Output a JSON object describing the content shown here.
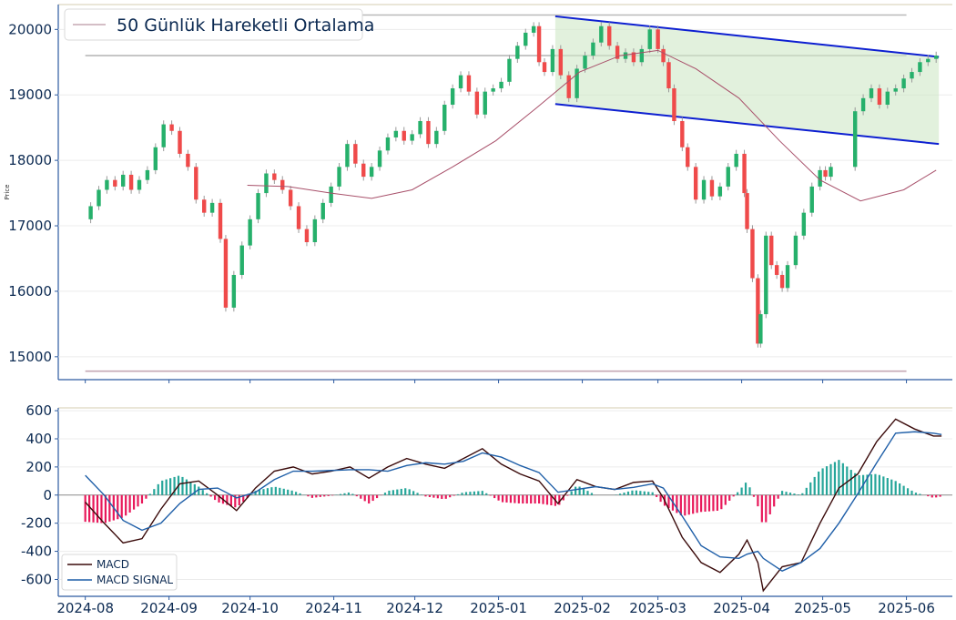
{
  "chart_data": [
    {
      "type": "candlestick",
      "ylabel": "Price",
      "ylim": [
        14650,
        20380
      ],
      "yticks": [
        15000,
        16000,
        17000,
        18000,
        19000,
        20000
      ],
      "xlim": [
        "2024-07-22",
        "2025-06-18"
      ],
      "xticks": [
        {
          "date": "2024-08-01",
          "label": "2024-08"
        },
        {
          "date": "2024-09-01",
          "label": "2024-09"
        },
        {
          "date": "2024-10-01",
          "label": "2024-10"
        },
        {
          "date": "2024-11-01",
          "label": "2024-11"
        },
        {
          "date": "2024-12-01",
          "label": "2024-12"
        },
        {
          "date": "2025-01-01",
          "label": "2025-01"
        },
        {
          "date": "2025-02-01",
          "label": "2025-02"
        },
        {
          "date": "2025-03-01",
          "label": "2025-03"
        },
        {
          "date": "2025-04-01",
          "label": "2025-04"
        },
        {
          "date": "2025-05-01",
          "label": "2025-05"
        },
        {
          "date": "2025-06-01",
          "label": "2025-06"
        }
      ],
      "legend": {
        "label": "50 Günlük Hareketli Ortalama",
        "position": "top-left"
      },
      "colors": {
        "up": "#26b06b",
        "down": "#ef4a4a",
        "ma": "#a8506a",
        "channel": "#0d1fd1",
        "channel_fill": "#cfe8c6",
        "level_line": "#b9b9b9",
        "low_line": "#c6a8b4",
        "axis": "#2c5aa0"
      },
      "horizontal_levels": [
        {
          "value": 20220,
          "start": "2024-08-01",
          "end": "2025-06-01"
        },
        {
          "value": 19600,
          "start": "2024-08-01",
          "end": "2025-06-01"
        },
        {
          "value": 14780,
          "start": "2024-08-01",
          "end": "2025-06-01"
        }
      ],
      "channel": {
        "upper": [
          [
            "2025-01-22",
            20200
          ],
          [
            "2025-06-13",
            19580
          ]
        ],
        "lower": [
          [
            "2025-01-22",
            18860
          ],
          [
            "2025-06-13",
            18250
          ]
        ]
      },
      "close_series": [
        [
          "2024-08-01",
          17100
        ],
        [
          "2024-08-03",
          17300
        ],
        [
          "2024-08-06",
          17550
        ],
        [
          "2024-08-09",
          17700
        ],
        [
          "2024-08-12",
          17600
        ],
        [
          "2024-08-15",
          17780
        ],
        [
          "2024-08-18",
          17550
        ],
        [
          "2024-08-21",
          17700
        ],
        [
          "2024-08-24",
          17850
        ],
        [
          "2024-08-27",
          18200
        ],
        [
          "2024-08-30",
          18550
        ],
        [
          "2024-09-02",
          18450
        ],
        [
          "2024-09-05",
          18100
        ],
        [
          "2024-09-08",
          17900
        ],
        [
          "2024-09-11",
          17400
        ],
        [
          "2024-09-14",
          17200
        ],
        [
          "2024-09-17",
          17350
        ],
        [
          "2024-09-20",
          16800
        ],
        [
          "2024-09-22",
          15750
        ],
        [
          "2024-09-25",
          16250
        ],
        [
          "2024-09-28",
          16700
        ],
        [
          "2024-10-01",
          17100
        ],
        [
          "2024-10-04",
          17500
        ],
        [
          "2024-10-07",
          17800
        ],
        [
          "2024-10-10",
          17700
        ],
        [
          "2024-10-13",
          17550
        ],
        [
          "2024-10-16",
          17300
        ],
        [
          "2024-10-19",
          16950
        ],
        [
          "2024-10-22",
          16750
        ],
        [
          "2024-10-25",
          17100
        ],
        [
          "2024-10-28",
          17350
        ],
        [
          "2024-10-31",
          17600
        ],
        [
          "2024-11-03",
          17900
        ],
        [
          "2024-11-06",
          18250
        ],
        [
          "2024-11-09",
          17950
        ],
        [
          "2024-11-12",
          17750
        ],
        [
          "2024-11-15",
          17900
        ],
        [
          "2024-11-18",
          18150
        ],
        [
          "2024-11-21",
          18350
        ],
        [
          "2024-11-24",
          18450
        ],
        [
          "2024-11-27",
          18300
        ],
        [
          "2024-11-30",
          18400
        ],
        [
          "2024-12-03",
          18600
        ],
        [
          "2024-12-06",
          18250
        ],
        [
          "2024-12-09",
          18450
        ],
        [
          "2024-12-12",
          18850
        ],
        [
          "2024-12-15",
          19100
        ],
        [
          "2024-12-18",
          19300
        ],
        [
          "2024-12-21",
          19050
        ],
        [
          "2024-12-24",
          18700
        ],
        [
          "2024-12-27",
          19050
        ],
        [
          "2024-12-30",
          19100
        ],
        [
          "2025-01-02",
          19200
        ],
        [
          "2025-01-05",
          19550
        ],
        [
          "2025-01-08",
          19750
        ],
        [
          "2025-01-11",
          19950
        ],
        [
          "2025-01-14",
          20050
        ],
        [
          "2025-01-16",
          19500
        ],
        [
          "2025-01-18",
          19350
        ],
        [
          "2025-01-21",
          19700
        ],
        [
          "2025-01-24",
          19300
        ],
        [
          "2025-01-27",
          18950
        ],
        [
          "2025-01-30",
          19400
        ],
        [
          "2025-02-02",
          19600
        ],
        [
          "2025-02-05",
          19800
        ],
        [
          "2025-02-08",
          20050
        ],
        [
          "2025-02-11",
          19750
        ],
        [
          "2025-02-14",
          19550
        ],
        [
          "2025-02-17",
          19650
        ],
        [
          "2025-02-20",
          19500
        ],
        [
          "2025-02-23",
          19700
        ],
        [
          "2025-02-26",
          20000
        ],
        [
          "2025-03-01",
          19700
        ],
        [
          "2025-03-03",
          19500
        ],
        [
          "2025-03-05",
          19100
        ],
        [
          "2025-03-07",
          18600
        ],
        [
          "2025-03-10",
          18200
        ],
        [
          "2025-03-12",
          17900
        ],
        [
          "2025-03-15",
          17400
        ],
        [
          "2025-03-18",
          17700
        ],
        [
          "2025-03-21",
          17450
        ],
        [
          "2025-03-24",
          17600
        ],
        [
          "2025-03-27",
          17900
        ],
        [
          "2025-03-30",
          18100
        ],
        [
          "2025-04-02",
          17500
        ],
        [
          "2025-04-03",
          16950
        ],
        [
          "2025-04-05",
          16200
        ],
        [
          "2025-04-07",
          15200
        ],
        [
          "2025-04-08",
          15650
        ],
        [
          "2025-04-10",
          16850
        ],
        [
          "2025-04-12",
          16400
        ],
        [
          "2025-04-14",
          16250
        ],
        [
          "2025-04-16",
          16050
        ],
        [
          "2025-04-18",
          16400
        ],
        [
          "2025-04-21",
          16850
        ],
        [
          "2025-04-24",
          17200
        ],
        [
          "2025-04-27",
          17600
        ],
        [
          "2025-04-30",
          17850
        ],
        [
          "2025-05-02",
          17750
        ],
        [
          "2025-05-04",
          17900
        ],
        [
          "2025-05-13",
          18750
        ],
        [
          "2025-05-16",
          18950
        ],
        [
          "2025-05-19",
          19100
        ],
        [
          "2025-05-22",
          18850
        ],
        [
          "2025-05-25",
          19050
        ],
        [
          "2025-05-28",
          19100
        ],
        [
          "2025-05-31",
          19250
        ],
        [
          "2025-06-03",
          19350
        ],
        [
          "2025-06-06",
          19500
        ],
        [
          "2025-06-09",
          19550
        ],
        [
          "2025-06-12",
          19600
        ]
      ],
      "ma50": [
        [
          "2024-09-30",
          17620
        ],
        [
          "2024-10-15",
          17600
        ],
        [
          "2024-10-31",
          17500
        ],
        [
          "2024-11-15",
          17420
        ],
        [
          "2024-11-30",
          17550
        ],
        [
          "2024-12-15",
          17900
        ],
        [
          "2024-12-31",
          18300
        ],
        [
          "2025-01-15",
          18800
        ],
        [
          "2025-01-31",
          19350
        ],
        [
          "2025-02-15",
          19600
        ],
        [
          "2025-03-01",
          19680
        ],
        [
          "2025-03-15",
          19400
        ],
        [
          "2025-03-31",
          18950
        ],
        [
          "2025-04-15",
          18300
        ],
        [
          "2025-04-30",
          17700
        ],
        [
          "2025-05-15",
          17380
        ],
        [
          "2025-05-31",
          17550
        ],
        [
          "2025-06-12",
          17850
        ]
      ]
    },
    {
      "type": "bar+line",
      "title": "",
      "ylim": [
        -720,
        620
      ],
      "yticks": [
        -600,
        -400,
        -200,
        0,
        200,
        400,
        600
      ],
      "legend": {
        "position": "bottom-left"
      },
      "series": [
        {
          "name": "MACD",
          "color": "#3a0a0a",
          "points": [
            [
              "2024-08-01",
              -50
            ],
            [
              "2024-08-08",
              -200
            ],
            [
              "2024-08-15",
              -340
            ],
            [
              "2024-08-22",
              -310
            ],
            [
              "2024-08-29",
              -100
            ],
            [
              "2024-09-05",
              80
            ],
            [
              "2024-09-12",
              100
            ],
            [
              "2024-09-19",
              0
            ],
            [
              "2024-09-26",
              -110
            ],
            [
              "2024-10-03",
              50
            ],
            [
              "2024-10-10",
              170
            ],
            [
              "2024-10-17",
              200
            ],
            [
              "2024-10-24",
              150
            ],
            [
              "2024-10-31",
              170
            ],
            [
              "2024-11-07",
              200
            ],
            [
              "2024-11-14",
              120
            ],
            [
              "2024-11-21",
              200
            ],
            [
              "2024-11-28",
              260
            ],
            [
              "2024-12-05",
              220
            ],
            [
              "2024-12-12",
              190
            ],
            [
              "2024-12-19",
              260
            ],
            [
              "2024-12-26",
              330
            ],
            [
              "2025-01-02",
              220
            ],
            [
              "2025-01-09",
              150
            ],
            [
              "2025-01-16",
              100
            ],
            [
              "2025-01-23",
              -60
            ],
            [
              "2025-01-30",
              110
            ],
            [
              "2025-02-06",
              60
            ],
            [
              "2025-02-13",
              40
            ],
            [
              "2025-02-20",
              90
            ],
            [
              "2025-02-27",
              100
            ],
            [
              "2025-03-03",
              -20
            ],
            [
              "2025-03-10",
              -300
            ],
            [
              "2025-03-17",
              -480
            ],
            [
              "2025-03-24",
              -550
            ],
            [
              "2025-03-31",
              -420
            ],
            [
              "2025-04-03",
              -320
            ],
            [
              "2025-04-07",
              -480
            ],
            [
              "2025-04-09",
              -680
            ],
            [
              "2025-04-16",
              -510
            ],
            [
              "2025-04-23",
              -480
            ],
            [
              "2025-04-30",
              -200
            ],
            [
              "2025-05-07",
              50
            ],
            [
              "2025-05-14",
              150
            ],
            [
              "2025-05-21",
              380
            ],
            [
              "2025-05-28",
              540
            ],
            [
              "2025-06-04",
              470
            ],
            [
              "2025-06-11",
              420
            ],
            [
              "2025-06-14",
              420
            ]
          ]
        },
        {
          "name": "MACD SIGNAL",
          "color": "#1f5fa8",
          "points": [
            [
              "2024-08-01",
              140
            ],
            [
              "2024-08-08",
              0
            ],
            [
              "2024-08-15",
              -180
            ],
            [
              "2024-08-22",
              -250
            ],
            [
              "2024-08-29",
              -200
            ],
            [
              "2024-09-05",
              -60
            ],
            [
              "2024-09-12",
              40
            ],
            [
              "2024-09-19",
              50
            ],
            [
              "2024-09-26",
              -20
            ],
            [
              "2024-10-03",
              20
            ],
            [
              "2024-10-10",
              110
            ],
            [
              "2024-10-17",
              170
            ],
            [
              "2024-10-24",
              170
            ],
            [
              "2024-10-31",
              175
            ],
            [
              "2024-11-07",
              180
            ],
            [
              "2024-11-14",
              180
            ],
            [
              "2024-11-21",
              170
            ],
            [
              "2024-11-28",
              210
            ],
            [
              "2024-12-05",
              230
            ],
            [
              "2024-12-12",
              220
            ],
            [
              "2024-12-19",
              240
            ],
            [
              "2024-12-26",
              300
            ],
            [
              "2025-01-02",
              270
            ],
            [
              "2025-01-09",
              210
            ],
            [
              "2025-01-16",
              160
            ],
            [
              "2025-01-23",
              20
            ],
            [
              "2025-01-30",
              40
            ],
            [
              "2025-02-06",
              60
            ],
            [
              "2025-02-13",
              40
            ],
            [
              "2025-02-20",
              55
            ],
            [
              "2025-02-27",
              80
            ],
            [
              "2025-03-03",
              50
            ],
            [
              "2025-03-10",
              -150
            ],
            [
              "2025-03-17",
              -360
            ],
            [
              "2025-03-24",
              -440
            ],
            [
              "2025-03-31",
              -450
            ],
            [
              "2025-04-03",
              -420
            ],
            [
              "2025-04-07",
              -400
            ],
            [
              "2025-04-09",
              -450
            ],
            [
              "2025-04-16",
              -540
            ],
            [
              "2025-04-23",
              -480
            ],
            [
              "2025-04-30",
              -380
            ],
            [
              "2025-05-07",
              -200
            ],
            [
              "2025-05-14",
              10
            ],
            [
              "2025-05-21",
              230
            ],
            [
              "2025-05-28",
              440
            ],
            [
              "2025-06-04",
              450
            ],
            [
              "2025-06-11",
              440
            ],
            [
              "2025-06-14",
              430
            ]
          ]
        }
      ],
      "histogram_colors": {
        "positive": "#26a69a",
        "negative": "#e8185a"
      }
    }
  ]
}
